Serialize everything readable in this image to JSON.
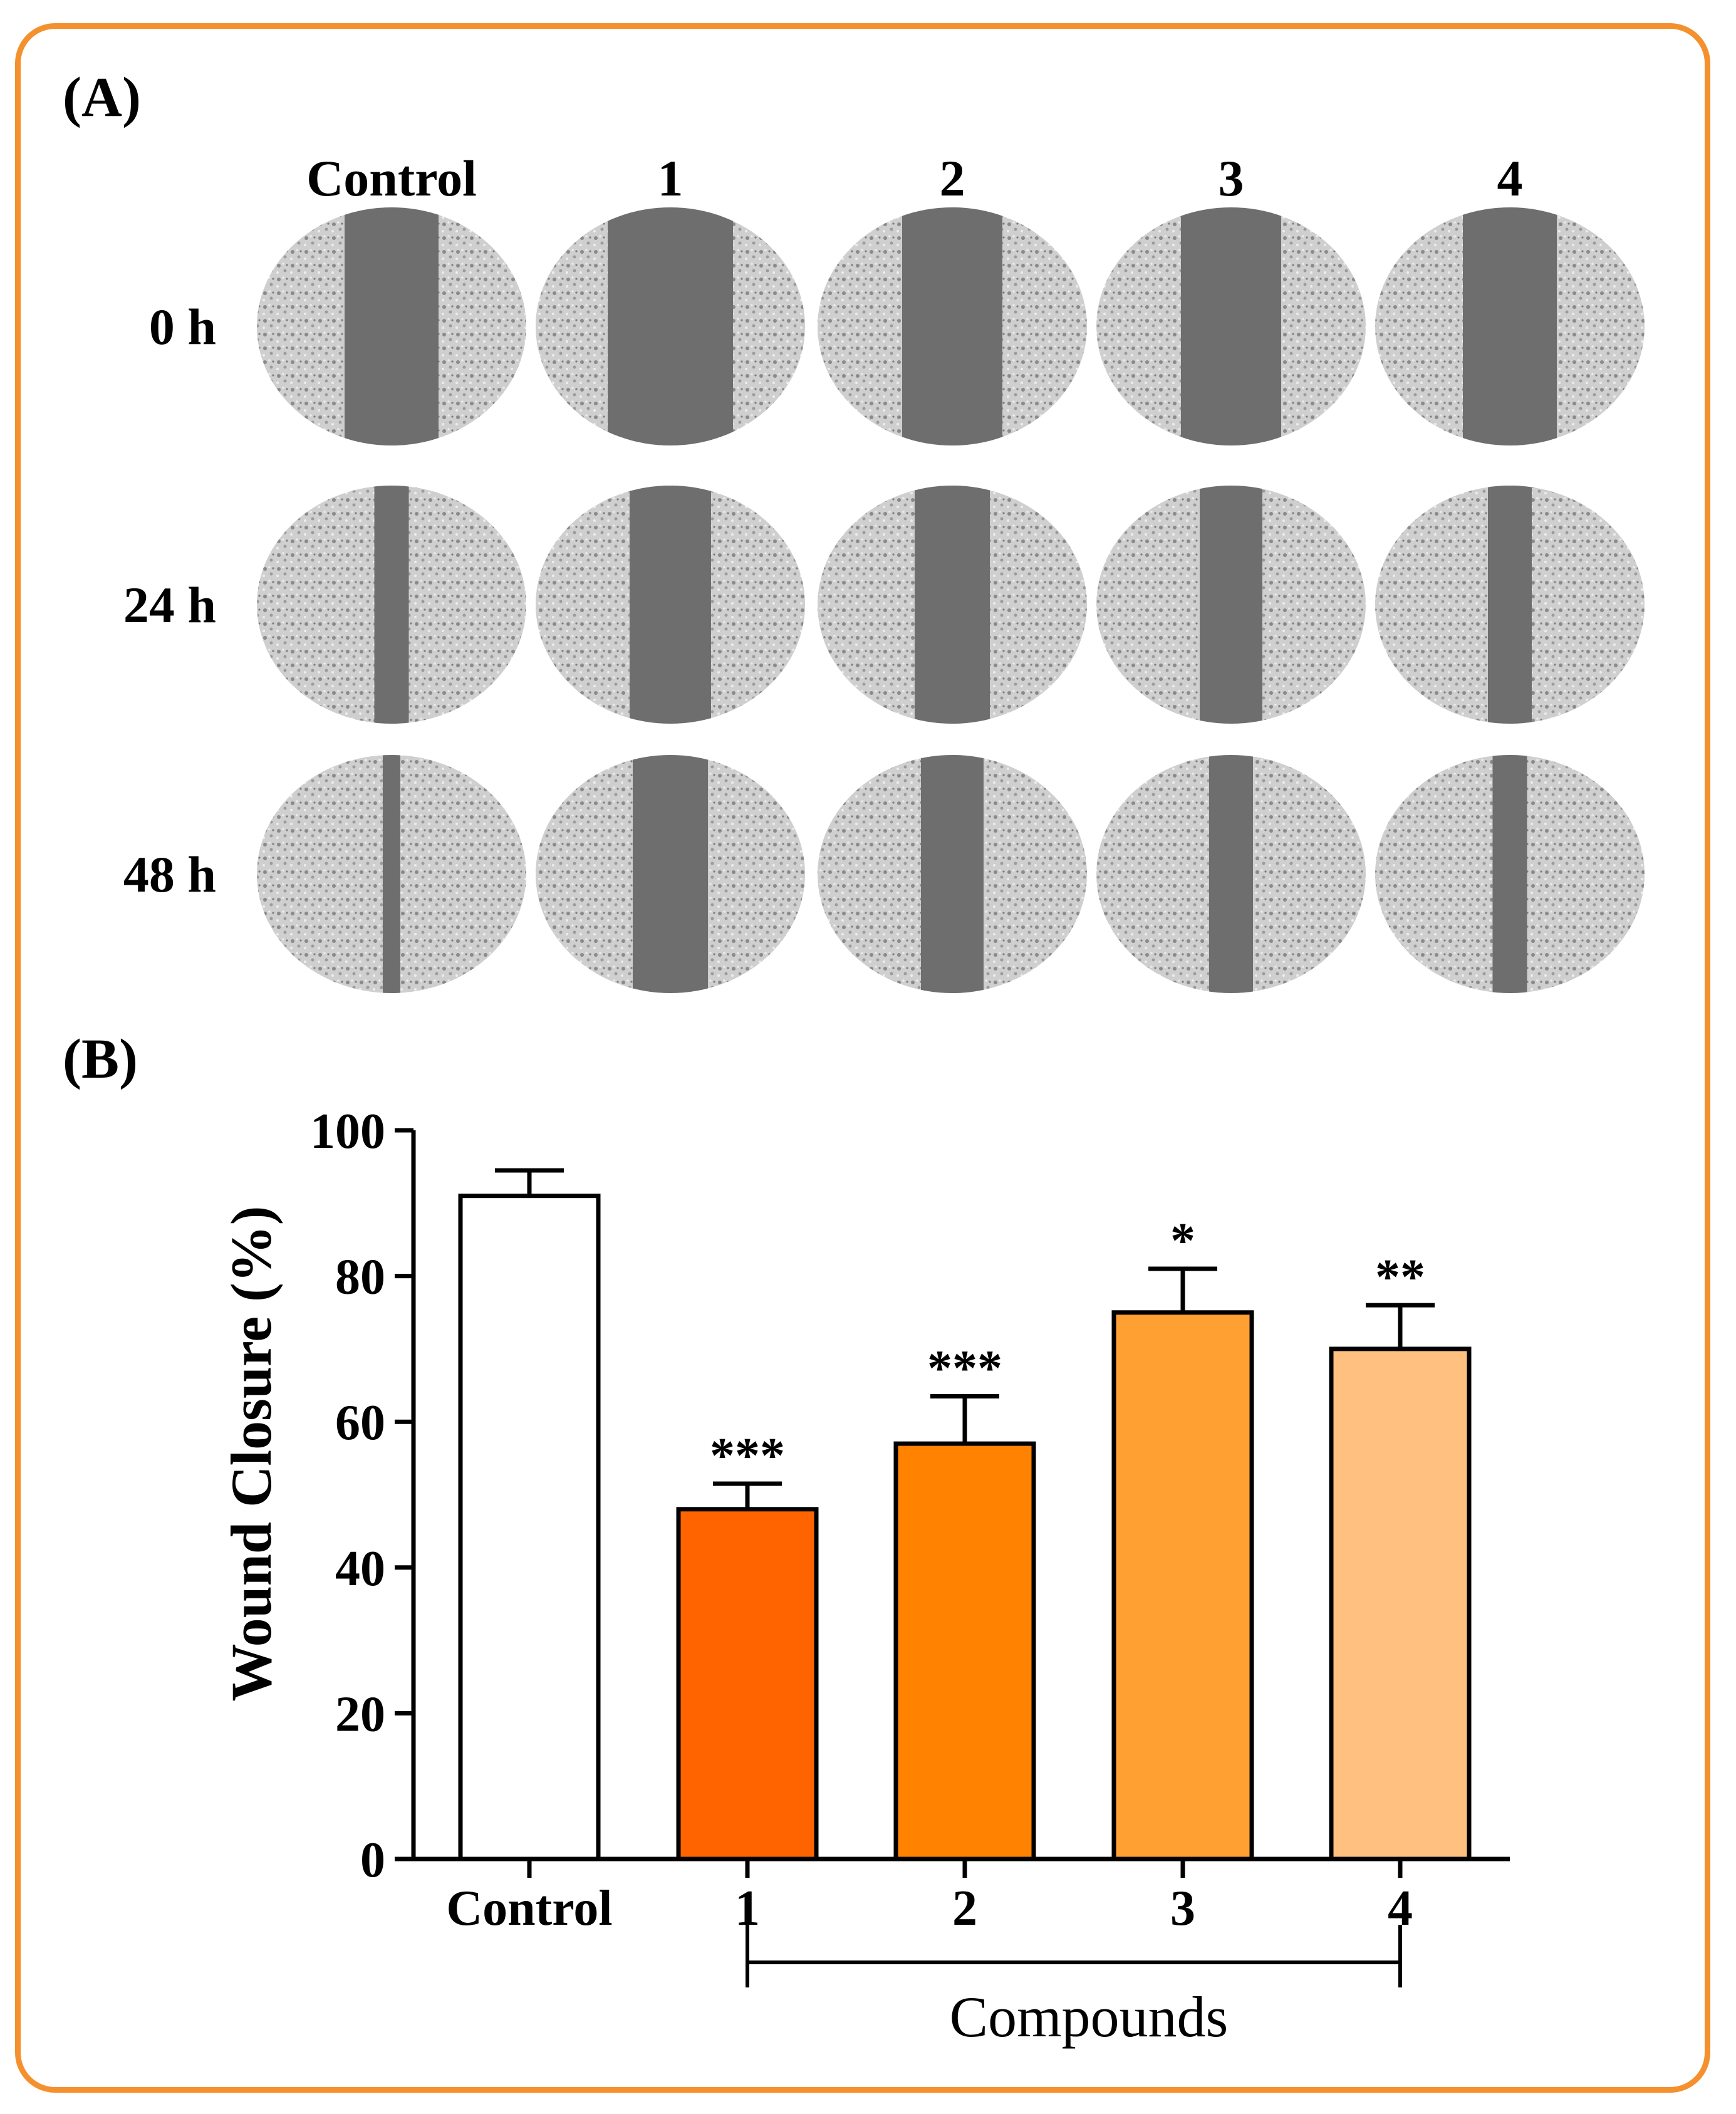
{
  "figure": {
    "frame_color": "#f4902d",
    "panel_a": {
      "label": "(A)",
      "columns": [
        "Control",
        "1",
        "2",
        "3",
        "4"
      ],
      "rows": [
        "0 h",
        "24 h",
        "48 h"
      ],
      "dish_image": "grayscale micrograph of scratch wound assay; dark vertical gap narrows over time"
    },
    "panel_b": {
      "label": "(B)",
      "compounds_label": "Compounds"
    }
  },
  "chart_data": {
    "type": "bar",
    "title": "",
    "xlabel": "",
    "ylabel": "Wound Closure (%)",
    "ylim": [
      0,
      100
    ],
    "yticks": [
      0,
      20,
      40,
      60,
      80,
      100
    ],
    "grid": false,
    "categories": [
      "Control",
      "1",
      "2",
      "3",
      "4"
    ],
    "values": [
      91,
      48,
      57,
      75,
      70
    ],
    "errors": [
      3.5,
      3.5,
      6.5,
      6,
      6
    ],
    "significance": [
      "",
      "***",
      "***",
      "*",
      "**"
    ],
    "colors": [
      "#ffffff",
      "#ff6400",
      "#ff8200",
      "#ffa033",
      "#ffc080"
    ],
    "group_bracket": {
      "label": "Compounds",
      "from": "1",
      "to": "4"
    }
  }
}
